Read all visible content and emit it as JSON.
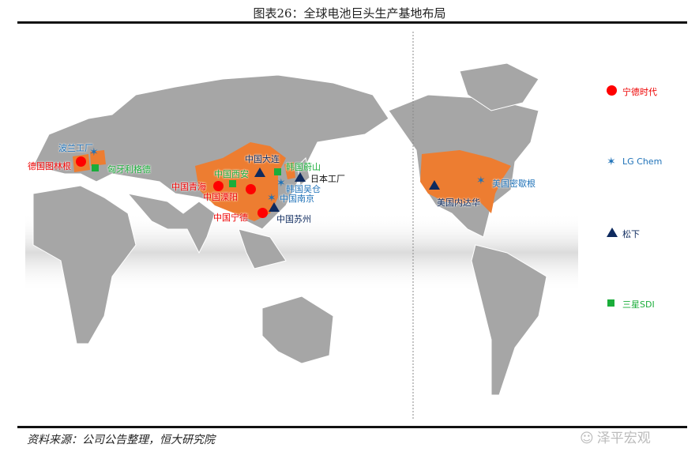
{
  "title": "图表26：全球电池巨头生产基地布局",
  "source": "资料来源：公司公告整理，恒大研究院",
  "watermark": "泽平宏观",
  "colors": {
    "catl": "#ff0000",
    "lg": "#1f72b8",
    "panasonic": "#0e2a5e",
    "samsung": "#1aad3a",
    "highlight": "#ed7d31",
    "land": "#a6a6a6"
  },
  "legend": [
    {
      "label": "宁德时代",
      "marker": "circle"
    },
    {
      "label": "LG Chem",
      "marker": "star"
    },
    {
      "label": "松下",
      "marker": "triangle"
    },
    {
      "label": "三星SDI",
      "marker": "square"
    }
  ],
  "sites": {
    "poland": "波兰工厂",
    "germany": "德国图林根",
    "hungary": "匈牙利格德",
    "dalian": "中国大连",
    "ulsan": "韩国蔚山",
    "japan": "日本工厂",
    "xian": "中国西安",
    "ochang": "韩国吴仓",
    "qinghai": "中国青海",
    "liyang": "中国溧阳",
    "nanjing": "中国南京",
    "ningde": "中国宁德",
    "suzhou": "中国苏州",
    "michigan": "美国密歇根",
    "nevada": "美国内达华"
  }
}
